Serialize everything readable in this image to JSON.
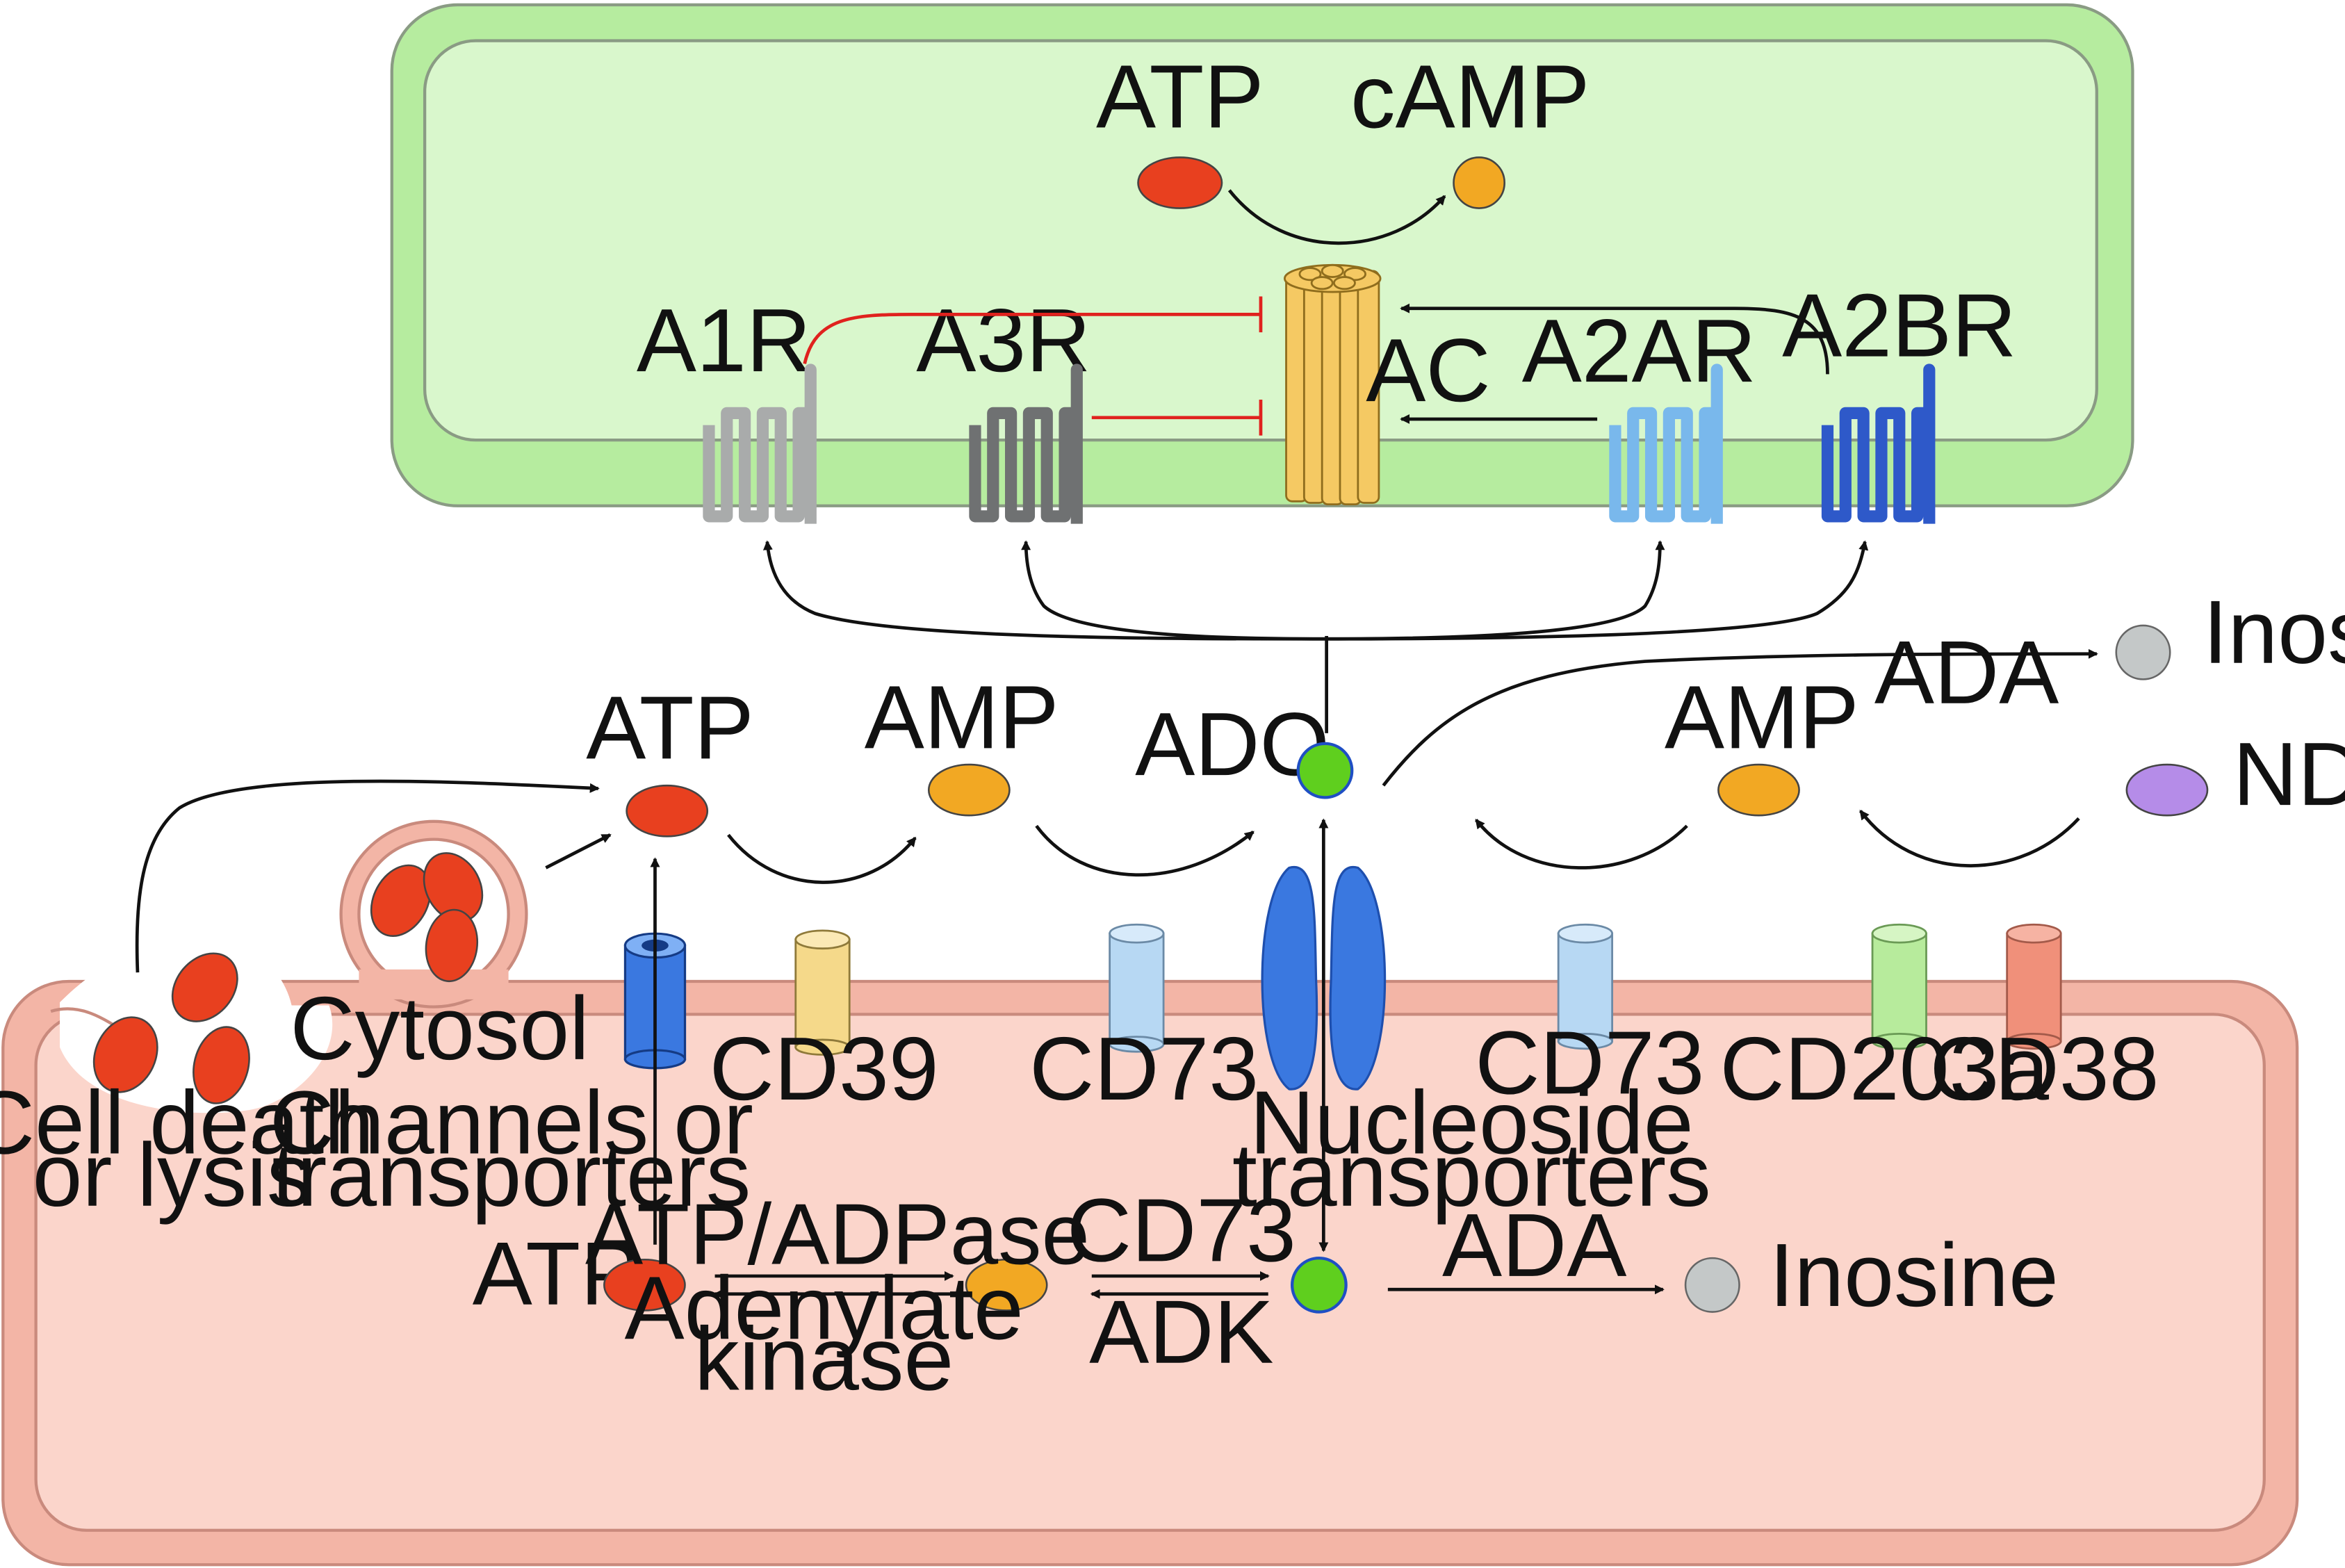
{
  "labels": {
    "atp_top": "ATP",
    "camp": "cAMP",
    "a1r": "A1R",
    "a3r": "A3R",
    "ac": "AC",
    "a2ar": "A2AR",
    "a2br": "A2BR",
    "inosine_out": "Inosine",
    "ada_out": "ADA",
    "atp_mid": "ATP",
    "amp_mid": "AMP",
    "ado": "ADO",
    "amp_right": "AMP",
    "nda": "NDA",
    "nda_sup": "+",
    "cytosol": "Cytosol",
    "cd39": "CD39",
    "cd73_left": "CD73",
    "cd73_right": "CD73",
    "cd203a": "CD203a",
    "cd38": "CD38",
    "cell_death_1": "Cell death",
    "cell_death_2": "or lysis",
    "channels_1": "Channels or",
    "channels_2": "transporters",
    "nucleoside_1": "Nucleoside",
    "nucleoside_2": "transporters",
    "atp_in": "ATP",
    "atp_adpase": "ATP/ADPase",
    "adenylate_1": "Adenylate",
    "adenylate_2": "kinase",
    "cd73_in": "CD73",
    "adk": "ADK",
    "ada_in": "ADA",
    "inosine_in": "Inosine"
  },
  "colors": {
    "top_cell_outer": "#b6ec9f",
    "top_cell_inner": "#d9f7cc",
    "bottom_cell_outer": "#f3b5a6",
    "bottom_cell_inner": "#fbd5cb",
    "atp": "#e8401f",
    "amp": "#f2a823",
    "ado": "#5fcf1e",
    "inosine": "#c4c8c8",
    "nda": "#b58ce8",
    "a1r": "#a9abab",
    "a3r": "#6f7172",
    "a2ar": "#79b8ec",
    "a2br": "#2e59c9",
    "ac": "#f5c963",
    "channel": "#3a78e0",
    "cd39": "#f5d98a",
    "cd73": "#b7d8f3",
    "cd203a": "#b7eb9c",
    "cd38": "#f0907a",
    "inhibit": "#e0221e"
  }
}
